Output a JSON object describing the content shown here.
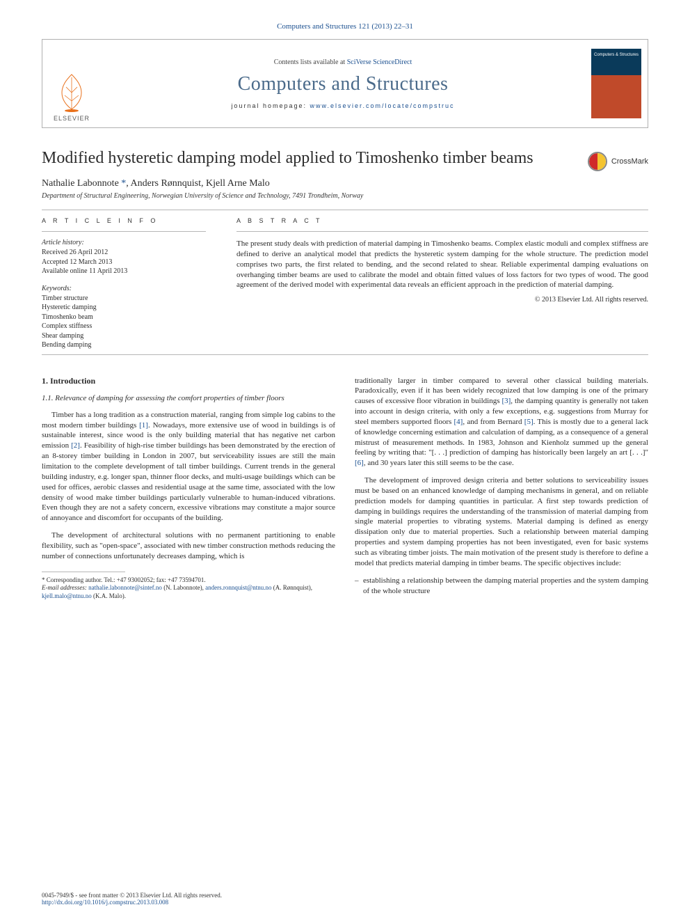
{
  "journal_ref": "Computers and Structures 121 (2013) 22–31",
  "masthead": {
    "contents_prefix": "Contents lists available at ",
    "contents_link": "SciVerse ScienceDirect",
    "journal_title": "Computers and Structures",
    "homepage_prefix": "journal homepage: ",
    "homepage_link": "www.elsevier.com/locate/compstruc",
    "publisher_label": "ELSEVIER",
    "cover_title": "Computers & Structures"
  },
  "colors": {
    "link": "#1a4f8f",
    "journal_title": "#4a6a8a",
    "text": "#2b2b2b",
    "rule": "#b6b6b6",
    "cover_top": "#0a3a5a",
    "cover_bottom": "#c04a2a",
    "crossmark_left": "#d02a2a",
    "crossmark_right": "#f4c430",
    "elsevier_orange": "#e9711c"
  },
  "typography": {
    "title_fontsize": 24,
    "journal_title_fontsize": 28,
    "body_fontsize": 11,
    "meta_fontsize": 10,
    "section_label_fontsize": 9,
    "font_family_body": "Georgia, 'Times New Roman', serif",
    "font_family_sans": "Arial, sans-serif"
  },
  "article": {
    "title": "Modified hysteretic damping model applied to Timoshenko timber beams",
    "crossmark_label": "CrossMark",
    "authors_html": "Nathalie Labonnote <span class='corr'>*</span>, Anders Rønnquist, Kjell Arne Malo",
    "affiliation": "Department of Structural Engineering, Norwegian University of Science and Technology, 7491 Trondheim, Norway"
  },
  "article_info": {
    "label": "A R T I C L E   I N F O",
    "history_head": "Article history:",
    "history": [
      "Received 26 April 2012",
      "Accepted 12 March 2013",
      "Available online 11 April 2013"
    ],
    "keywords_head": "Keywords:",
    "keywords": [
      "Timber structure",
      "Hysteretic damping",
      "Timoshenko beam",
      "Complex stiffness",
      "Shear damping",
      "Bending damping"
    ]
  },
  "abstract": {
    "label": "A B S T R A C T",
    "text": "The present study deals with prediction of material damping in Timoshenko beams. Complex elastic moduli and complex stiffness are defined to derive an analytical model that predicts the hysteretic system damping for the whole structure. The prediction model comprises two parts, the first related to bending, and the second related to shear. Reliable experimental damping evaluations on overhanging timber beams are used to calibrate the model and obtain fitted values of loss factors for two types of wood. The good agreement of the derived model with experimental data reveals an efficient approach in the prediction of material damping.",
    "copyright": "© 2013 Elsevier Ltd. All rights reserved."
  },
  "body": {
    "sec1_num_title": "1. Introduction",
    "sec11_title": "1.1. Relevance of damping for assessing the comfort properties of timber floors",
    "left_paras": [
      "Timber has a long tradition as a construction material, ranging from simple log cabins to the most modern timber buildings <span class='cite'>[1]</span>. Nowadays, more extensive use of wood in buildings is of sustainable interest, since wood is the only building material that has negative net carbon emission <span class='cite'>[2]</span>. Feasibility of high-rise timber buildings has been demonstrated by the erection of an 8-storey timber building in London in 2007, but serviceability issues are still the main limitation to the complete development of tall timber buildings. Current trends in the general building industry, e.g. longer span, thinner floor decks, and multi-usage buildings which can be used for offices, aerobic classes and residential usage at the same time, associated with the low density of wood make timber buildings particularly vulnerable to human-induced vibrations. Even though they are not a safety concern, excessive vibrations may constitute a major source of annoyance and discomfort for occupants of the building.",
      "The development of architectural solutions with no permanent partitioning to enable flexibility, such as \"open-space\", associated with new timber construction methods reducing the number of connections unfortunately decreases damping, which is"
    ],
    "right_paras": [
      "traditionally larger in timber compared to several other classical building materials. Paradoxically, even if it has been widely recognized that low damping is one of the primary causes of excessive floor vibration in buildings <span class='cite'>[3]</span>, the damping quantity is generally not taken into account in design criteria, with only a few exceptions, e.g. suggestions from Murray for steel members supported floors <span class='cite'>[4]</span>, and from Bernard <span class='cite'>[5]</span>. This is mostly due to a general lack of knowledge concerning estimation and calculation of damping, as a consequence of a general mistrust of measurement methods. In 1983, Johnson and Kienholz summed up the general feeling by writing that: \"[. . .] prediction of damping has historically been largely an art [. . .]\" <span class='cite'>[6]</span>, and 30 years later this still seems to be the case.",
      "The development of improved design criteria and better solutions to serviceability issues must be based on an enhanced knowledge of damping mechanisms in general, and on reliable prediction models for damping quantities in particular. A first step towards prediction of damping in buildings requires the understanding of the transmission of material damping from single material properties to vibrating systems. Material damping is defined as energy dissipation only due to material properties. Such a relationship between material damping properties and system damping properties has not been investigated, even for basic systems such as vibrating timber joists. The main motivation of the present study is therefore to define a model that predicts material damping in timber beams. The specific objectives include:"
    ],
    "bullet1": "establishing a relationship between the damping material properties and the system damping of the whole structure"
  },
  "footnotes": {
    "corr": "* Corresponding author. Tel.: +47 93002052; fax: +47 73594701.",
    "emails_label": "E-mail addresses:",
    "emails_html": "<span class='link'>nathalie.labonnote@sintef.no</span> (N. Labonnote), <span class='link'>anders.ronnquist@ntnu.no</span> (A. Rønnquist), <span class='link'>kjell.malo@ntnu.no</span> (K.A. Malo)."
  },
  "footer": {
    "front_matter": "0045-7949/$ - see front matter © 2013 Elsevier Ltd. All rights reserved.",
    "doi": "http://dx.doi.org/10.1016/j.compstruc.2013.03.008"
  }
}
